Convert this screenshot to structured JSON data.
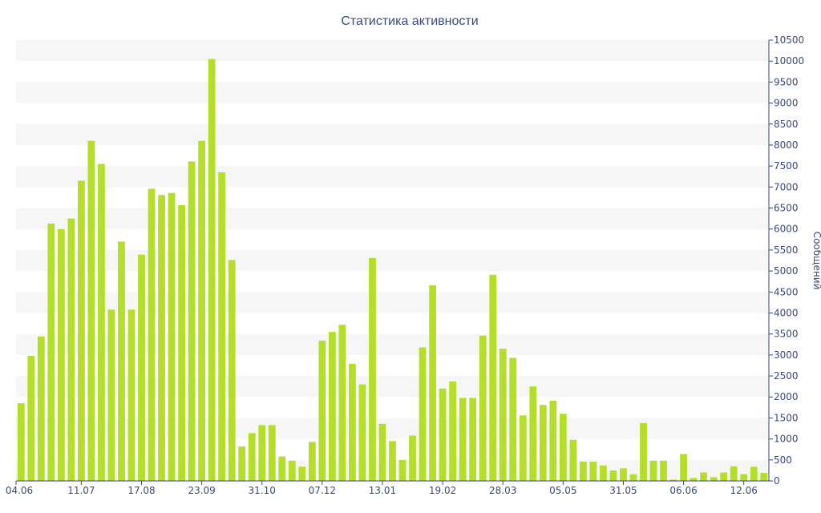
{
  "chart_data": {
    "type": "bar",
    "title": "Статистика активности",
    "ylabel": "Сообщений",
    "xlabel": "",
    "ylim": [
      0,
      10500
    ],
    "y_tick_step": 500,
    "y_axis_side": "right",
    "grid": "alternating horizontal bands",
    "x_tick_labels": [
      "04.06",
      "11.07",
      "17.08",
      "23.09",
      "31.10",
      "07.12",
      "13.01",
      "19.02",
      "28.03",
      "05.05",
      "31.05",
      "06.06",
      "12.06"
    ],
    "x_tick_positions": [
      0,
      6,
      12,
      18,
      24,
      30,
      36,
      42,
      48,
      54,
      60,
      66,
      72
    ],
    "series": [
      {
        "color": "#b5de2b",
        "values": [
          1850,
          2980,
          3440,
          6130,
          6000,
          6250,
          7150,
          8100,
          7550,
          4080,
          5700,
          4080,
          5390,
          6960,
          6810,
          6860,
          6570,
          7610,
          8100,
          10050,
          7350,
          5260,
          820,
          1140,
          1330,
          1330,
          580,
          480,
          340,
          930,
          3340,
          3550,
          3720,
          2790,
          2300,
          5310,
          1360,
          950,
          500,
          1080,
          3180,
          4660,
          2200,
          2370,
          1980,
          1980,
          3460,
          4910,
          3150,
          2930,
          1560,
          2250,
          1810,
          1910,
          1600,
          980,
          460,
          460,
          370,
          250,
          300,
          160,
          1380,
          480,
          480,
          30,
          640,
          70,
          200,
          90,
          200,
          350,
          160,
          340,
          190
        ]
      }
    ]
  }
}
